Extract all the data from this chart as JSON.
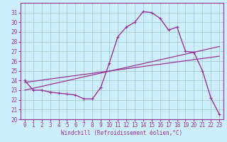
{
  "xlabel": "Windchill (Refroidissement éolien,°C)",
  "background_color": "#cceeff",
  "grid_color": "#aacccc",
  "line_color": "#993399",
  "spine_color": "#993399",
  "xlim": [
    -0.5,
    23.5
  ],
  "ylim": [
    20,
    32
  ],
  "yticks": [
    20,
    21,
    22,
    23,
    24,
    25,
    26,
    27,
    28,
    29,
    30,
    31
  ],
  "xticks": [
    0,
    1,
    2,
    3,
    4,
    5,
    6,
    7,
    8,
    9,
    10,
    11,
    12,
    13,
    14,
    15,
    16,
    17,
    18,
    19,
    20,
    21,
    22,
    23
  ],
  "curve1_x": [
    0,
    1,
    2,
    3,
    4,
    5,
    6,
    7,
    8,
    9,
    10,
    11,
    12,
    13,
    14,
    15,
    16,
    17,
    18,
    19,
    20,
    21,
    22,
    23
  ],
  "curve1_y": [
    24.0,
    23.0,
    23.0,
    22.8,
    22.7,
    22.6,
    22.5,
    22.1,
    22.1,
    23.3,
    25.8,
    28.5,
    29.5,
    30.0,
    31.1,
    31.0,
    30.4,
    29.2,
    29.5,
    27.0,
    26.9,
    25.0,
    22.2,
    20.5
  ],
  "curve2_x": [
    0,
    23
  ],
  "curve2_y": [
    23.0,
    27.5
  ],
  "curve3_x": [
    0,
    23
  ],
  "curve3_y": [
    23.8,
    26.5
  ],
  "xlabel_fontsize": 5.5,
  "tick_fontsize": 5.5,
  "marker_size": 2.5
}
